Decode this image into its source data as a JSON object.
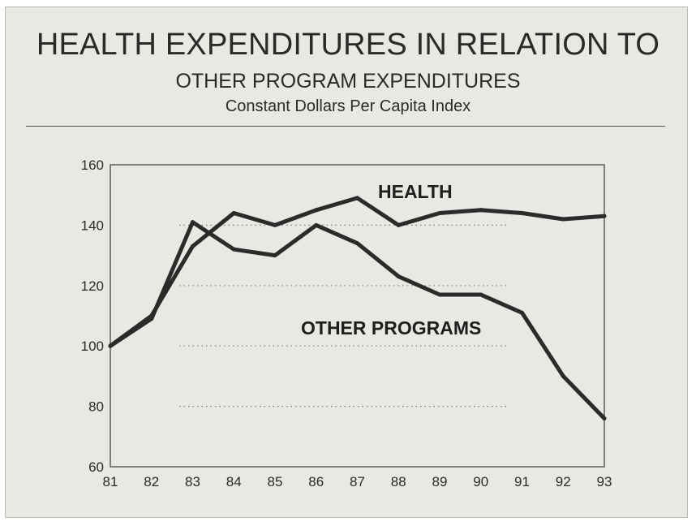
{
  "header": {
    "title": "HEALTH EXPENDITURES IN RELATION TO",
    "subtitle": "OTHER PROGRAM EXPENDITURES",
    "subsubtitle": "Constant Dollars Per Capita Index"
  },
  "chart_data": {
    "type": "line",
    "title": "HEALTH EXPENDITURES IN RELATION TO OTHER PROGRAM EXPENDITURES",
    "subtitle": "Constant Dollars Per Capita Index",
    "x": [
      "81",
      "82",
      "83",
      "84",
      "85",
      "86",
      "87",
      "88",
      "89",
      "90",
      "91",
      "92",
      "93"
    ],
    "yticks": [
      "60",
      "80",
      "100",
      "120",
      "140",
      "160"
    ],
    "ylim": [
      60,
      160
    ],
    "grid": "dotted horizontal at 80, 100, 120, 140",
    "series": [
      {
        "name": "HEALTH",
        "values": [
          100,
          110,
          133,
          144,
          140,
          145,
          149,
          140,
          144,
          145,
          144,
          142,
          143
        ]
      },
      {
        "name": "OTHER PROGRAMS",
        "values": [
          100,
          109,
          141,
          132,
          130,
          140,
          134,
          123,
          117,
          117,
          111,
          90,
          76
        ]
      }
    ],
    "colors": {
      "line": "#2b2b2b",
      "grid": "#7a7a7a",
      "background": "#e7e9e3"
    }
  }
}
